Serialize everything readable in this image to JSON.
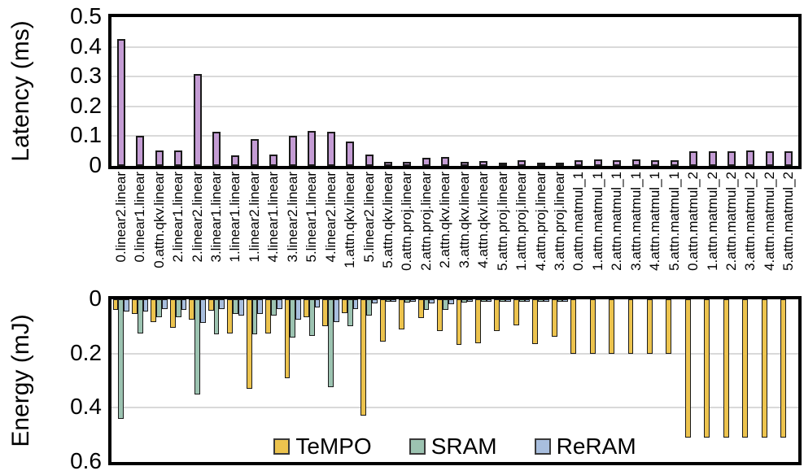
{
  "chart_data": [
    {
      "type": "bar",
      "title": "",
      "ylabel": "Latency (ms)",
      "xlabel": "",
      "ylim": [
        0,
        0.5
      ],
      "yticks": [
        "0.5",
        "0.4",
        "0.3",
        "0.2",
        "0.1",
        "0"
      ],
      "grid": true,
      "gridlines": [
        0.1,
        0.2,
        0.3,
        0.4
      ],
      "gridline_color": "#d9d9d9",
      "bar_color": "#c49cd4",
      "bar_outline": "#1a1a1a",
      "legend_position": "none",
      "categories": [
        "0.linear2.linear",
        "0.linear1.linear",
        "0.attn.qkv.linear",
        "2.linear1.linear",
        "2.linear2.linear",
        "3.linear1.linear",
        "1.linear1.linear",
        "1.linear2.linear",
        "4.linear1.linear",
        "3.linear2.linear",
        "5.linear1.linear",
        "4.linear2.linear",
        "1.attn.qkv.linear",
        "5.linear2.linear",
        "5.attn.qkv.linear",
        "0.attn.proj.linear",
        "2.attn.proj.linear",
        "2.attn.qkv.linear",
        "3.attn.qkv.linear",
        "4.attn.qkv.linear",
        "5.attn.proj.linear",
        "1.attn.proj.linear",
        "4.attn.proj.linear",
        "3.attn.proj.linear",
        "0.attn.matmul_1",
        "1.attn.matmul_1",
        "2.attn.matmul_1",
        "3.attn.matmul_1",
        "4.attn.matmul_1",
        "5.attn.matmul_1",
        "0.attn.matmul_2",
        "1.attn.matmul_2",
        "2.attn.matmul_2",
        "3.attn.matmul_2",
        "4.attn.matmul_2",
        "5.attn.matmul_2"
      ],
      "values": [
        0.425,
        0.1,
        0.052,
        0.052,
        0.31,
        0.115,
        0.036,
        0.09,
        0.038,
        0.102,
        0.117,
        0.116,
        0.083,
        0.038,
        0.014,
        0.013,
        0.026,
        0.031,
        0.013,
        0.016,
        0.009,
        0.02,
        0.01,
        0.012,
        0.02,
        0.021,
        0.02,
        0.021,
        0.02,
        0.02,
        0.05,
        0.05,
        0.049,
        0.051,
        0.05,
        0.05
      ]
    },
    {
      "type": "bar",
      "inverted": true,
      "title": "",
      "ylabel": "Energy (mJ)",
      "xlabel": "",
      "ylim": [
        0,
        0.6
      ],
      "yticks": [
        "0",
        "0.2",
        "0.4",
        "0.6"
      ],
      "grid": true,
      "gridlines": [
        0.2,
        0.4
      ],
      "gridline_color": "#d9d9d9",
      "legend_position": "bottom-center-inside",
      "categories": [
        "0.linear2.linear",
        "0.linear1.linear",
        "0.attn.qkv.linear",
        "2.linear1.linear",
        "2.linear2.linear",
        "3.linear1.linear",
        "1.linear1.linear",
        "1.linear2.linear",
        "4.linear1.linear",
        "3.linear2.linear",
        "5.linear1.linear",
        "4.linear2.linear",
        "1.attn.qkv.linear",
        "5.linear2.linear",
        "5.attn.qkv.linear",
        "0.attn.proj.linear",
        "2.attn.proj.linear",
        "2.attn.qkv.linear",
        "3.attn.qkv.linear",
        "4.attn.qkv.linear",
        "5.attn.proj.linear",
        "1.attn.proj.linear",
        "4.attn.proj.linear",
        "3.attn.proj.linear",
        "0.attn.matmul_1",
        "1.attn.matmul_1",
        "2.attn.matmul_1",
        "3.attn.matmul_1",
        "4.attn.matmul_1",
        "5.attn.matmul_1",
        "0.attn.matmul_2",
        "1.attn.matmul_2",
        "2.attn.matmul_2",
        "3.attn.matmul_2",
        "4.attn.matmul_2",
        "5.attn.matmul_2"
      ],
      "series": [
        {
          "name": "TeMPO",
          "color": "#ecc34e",
          "values": [
            0.04,
            0.055,
            0.085,
            0.105,
            0.075,
            0.042,
            0.125,
            0.33,
            0.125,
            0.29,
            0.065,
            0.1,
            0.05,
            0.43,
            0.157,
            0.11,
            0.07,
            0.118,
            0.168,
            0.162,
            0.118,
            0.096,
            0.164,
            0.137,
            0.2,
            0.2,
            0.2,
            0.2,
            0.2,
            0.2,
            0.51,
            0.51,
            0.51,
            0.51,
            0.51,
            0.51
          ]
        },
        {
          "name": "SRAM",
          "color": "#9cc3b1",
          "values": [
            0.44,
            0.125,
            0.065,
            0.065,
            0.35,
            0.13,
            0.055,
            0.13,
            0.06,
            0.14,
            0.135,
            0.325,
            0.1,
            0.06,
            0.01,
            0.012,
            0.038,
            0.038,
            0.013,
            0.009,
            0.008,
            0.01,
            0.01,
            0.01,
            0,
            0,
            0,
            0,
            0,
            0,
            0,
            0,
            0,
            0,
            0,
            0
          ]
        },
        {
          "name": "ReRAM",
          "color": "#a8bede",
          "values": [
            0.045,
            0.045,
            0.035,
            0.038,
            0.088,
            0.035,
            0.06,
            0.055,
            0.035,
            0.075,
            0.03,
            0.085,
            0.035,
            0.015,
            0.01,
            0.01,
            0.015,
            0.018,
            0.01,
            0.008,
            0.008,
            0.008,
            0.008,
            0.008,
            0,
            0,
            0,
            0,
            0,
            0,
            0,
            0,
            0,
            0,
            0,
            0
          ]
        }
      ]
    }
  ]
}
